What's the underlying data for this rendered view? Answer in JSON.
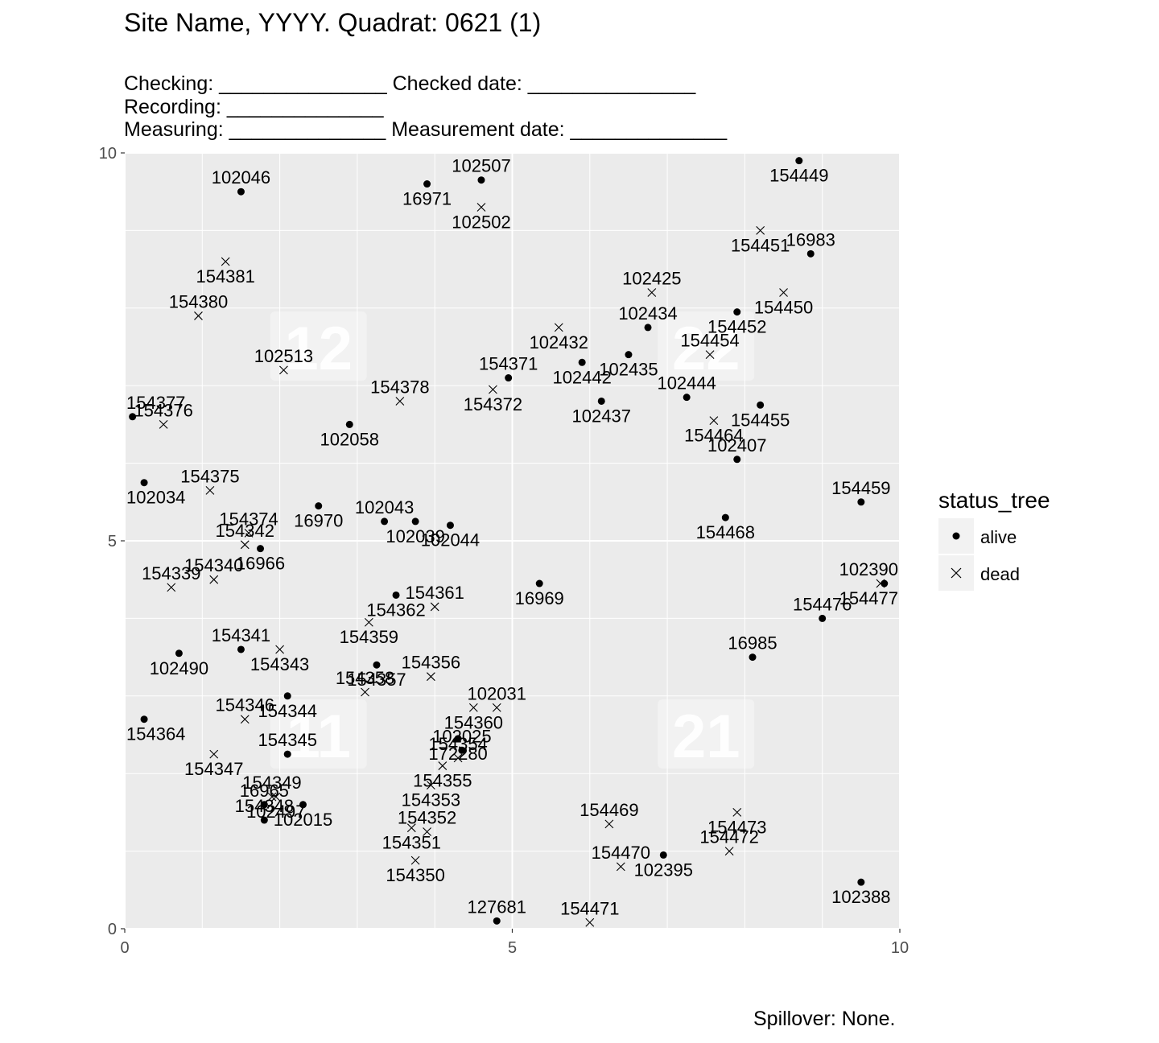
{
  "title": "Site Name, YYYY. Quadrat: 0621 (1)",
  "lines": {
    "checking": "Checking: _______________ Checked date: _______________",
    "recording": "Recording: ______________",
    "measuring": "Measuring: ______________ Measurement date: ______________"
  },
  "footer": "Spillover: None.",
  "legend": {
    "title": "status_tree",
    "items": [
      {
        "label": "alive",
        "shape": "filled-circle"
      },
      {
        "label": "dead",
        "shape": "cross"
      }
    ]
  },
  "chart_data": {
    "type": "scatter",
    "title": "Site Name, YYYY. Quadrat: 0621 (1)",
    "xlabel": "",
    "ylabel": "",
    "xlim": [
      0,
      10
    ],
    "ylim": [
      0,
      10
    ],
    "x_ticks": [
      "0",
      "5",
      "10"
    ],
    "y_ticks": [
      "0",
      "5",
      "10"
    ],
    "grid": true,
    "legend_position": "right",
    "colors": {
      "panel": "#ebebeb",
      "grid": "#ffffff",
      "points": "#000000"
    },
    "subquadrat_labels": [
      {
        "text": "12",
        "x": 2.5,
        "y": 7.5
      },
      {
        "text": "22",
        "x": 7.5,
        "y": 7.5
      },
      {
        "text": "11",
        "x": 2.5,
        "y": 2.5
      },
      {
        "text": "21",
        "x": 7.5,
        "y": 2.5
      }
    ],
    "points": [
      {
        "tag": "102046",
        "status": "alive",
        "x": 1.5,
        "y": 9.5
      },
      {
        "tag": "16971",
        "status": "alive",
        "x": 3.9,
        "y": 9.6
      },
      {
        "tag": "102507",
        "status": "alive",
        "x": 4.6,
        "y": 9.65
      },
      {
        "tag": "102502",
        "status": "dead",
        "x": 4.6,
        "y": 9.3
      },
      {
        "tag": "154449",
        "status": "alive",
        "x": 8.7,
        "y": 9.9
      },
      {
        "tag": "154451",
        "status": "dead",
        "x": 8.2,
        "y": 9.0
      },
      {
        "tag": "16983",
        "status": "alive",
        "x": 8.85,
        "y": 8.7
      },
      {
        "tag": "154381",
        "status": "dead",
        "x": 1.3,
        "y": 8.6
      },
      {
        "tag": "102425",
        "status": "dead",
        "x": 6.8,
        "y": 8.2
      },
      {
        "tag": "154450",
        "status": "dead",
        "x": 8.5,
        "y": 8.2
      },
      {
        "tag": "154380",
        "status": "dead",
        "x": 0.95,
        "y": 7.9
      },
      {
        "tag": "102432",
        "status": "dead",
        "x": 5.6,
        "y": 7.75
      },
      {
        "tag": "102434",
        "status": "alive",
        "x": 6.75,
        "y": 7.75
      },
      {
        "tag": "154452",
        "status": "alive",
        "x": 7.9,
        "y": 7.95
      },
      {
        "tag": "154454",
        "status": "dead",
        "x": 7.55,
        "y": 7.4
      },
      {
        "tag": "102435",
        "status": "alive",
        "x": 6.5,
        "y": 7.4
      },
      {
        "tag": "102513",
        "status": "dead",
        "x": 2.05,
        "y": 7.2
      },
      {
        "tag": "102442",
        "status": "alive",
        "x": 5.9,
        "y": 7.3
      },
      {
        "tag": "154371",
        "status": "alive",
        "x": 4.95,
        "y": 7.1
      },
      {
        "tag": "154372",
        "status": "dead",
        "x": 4.75,
        "y": 6.95
      },
      {
        "tag": "102444",
        "status": "alive",
        "x": 7.25,
        "y": 6.85
      },
      {
        "tag": "154455",
        "status": "alive",
        "x": 8.2,
        "y": 6.75
      },
      {
        "tag": "154378",
        "status": "dead",
        "x": 3.55,
        "y": 6.8
      },
      {
        "tag": "102437",
        "status": "alive",
        "x": 6.15,
        "y": 6.8
      },
      {
        "tag": "154377",
        "status": "alive",
        "x": 0.1,
        "y": 6.6
      },
      {
        "tag": "102058",
        "status": "alive",
        "x": 2.9,
        "y": 6.5
      },
      {
        "tag": "154376",
        "status": "dead",
        "x": 0.5,
        "y": 6.5
      },
      {
        "tag": "154464",
        "status": "dead",
        "x": 7.6,
        "y": 6.55
      },
      {
        "tag": "102407",
        "status": "alive",
        "x": 7.9,
        "y": 6.05
      },
      {
        "tag": "102034",
        "status": "alive",
        "x": 0.25,
        "y": 5.75
      },
      {
        "tag": "154375",
        "status": "dead",
        "x": 1.1,
        "y": 5.65
      },
      {
        "tag": "16970",
        "status": "alive",
        "x": 2.5,
        "y": 5.45
      },
      {
        "tag": "154459",
        "status": "alive",
        "x": 9.5,
        "y": 5.5
      },
      {
        "tag": "102039",
        "status": "alive",
        "x": 3.75,
        "y": 5.25
      },
      {
        "tag": "102043",
        "status": "alive",
        "x": 3.35,
        "y": 5.25
      },
      {
        "tag": "102044",
        "status": "alive",
        "x": 4.2,
        "y": 5.2
      },
      {
        "tag": "154374",
        "status": "dead",
        "x": 1.6,
        "y": 5.1
      },
      {
        "tag": "154468",
        "status": "alive",
        "x": 7.75,
        "y": 5.3
      },
      {
        "tag": "154342",
        "status": "dead",
        "x": 1.55,
        "y": 4.95
      },
      {
        "tag": "16966",
        "status": "alive",
        "x": 1.75,
        "y": 4.9
      },
      {
        "tag": "102390",
        "status": "alive",
        "x": 9.8,
        "y": 4.45
      },
      {
        "tag": "154477",
        "status": "dead",
        "x": 9.75,
        "y": 4.45
      },
      {
        "tag": "154340",
        "status": "dead",
        "x": 1.15,
        "y": 4.5
      },
      {
        "tag": "16969",
        "status": "alive",
        "x": 5.35,
        "y": 4.45
      },
      {
        "tag": "154339",
        "status": "dead",
        "x": 0.6,
        "y": 4.4
      },
      {
        "tag": "154362",
        "status": "alive",
        "x": 3.5,
        "y": 4.3
      },
      {
        "tag": "154361",
        "status": "dead",
        "x": 4.0,
        "y": 4.15
      },
      {
        "tag": "154359",
        "status": "dead",
        "x": 3.15,
        "y": 3.95
      },
      {
        "tag": "154476",
        "status": "alive",
        "x": 9.0,
        "y": 4.0
      },
      {
        "tag": "154343",
        "status": "dead",
        "x": 2.0,
        "y": 3.6
      },
      {
        "tag": "154341",
        "status": "alive",
        "x": 1.5,
        "y": 3.6
      },
      {
        "tag": "102490",
        "status": "alive",
        "x": 0.7,
        "y": 3.55
      },
      {
        "tag": "16985",
        "status": "alive",
        "x": 8.1,
        "y": 3.5
      },
      {
        "tag": "154357",
        "status": "alive",
        "x": 3.25,
        "y": 3.4
      },
      {
        "tag": "154356",
        "status": "dead",
        "x": 3.95,
        "y": 3.25
      },
      {
        "tag": "154344",
        "status": "alive",
        "x": 2.1,
        "y": 3.0
      },
      {
        "tag": "154358",
        "status": "dead",
        "x": 3.1,
        "y": 3.05
      },
      {
        "tag": "154360",
        "status": "dead",
        "x": 4.5,
        "y": 2.85
      },
      {
        "tag": "102031",
        "status": "dead",
        "x": 4.8,
        "y": 2.85
      },
      {
        "tag": "154364",
        "status": "alive",
        "x": 0.25,
        "y": 2.7
      },
      {
        "tag": "154346",
        "status": "dead",
        "x": 1.55,
        "y": 2.7
      },
      {
        "tag": "172280",
        "status": "alive",
        "x": 4.3,
        "y": 2.45
      },
      {
        "tag": "154345",
        "status": "alive",
        "x": 2.1,
        "y": 2.25
      },
      {
        "tag": "154347",
        "status": "dead",
        "x": 1.15,
        "y": 2.25
      },
      {
        "tag": "102025",
        "status": "alive",
        "x": 4.35,
        "y": 2.3
      },
      {
        "tag": "154355",
        "status": "dead",
        "x": 4.1,
        "y": 2.1
      },
      {
        "tag": "154354",
        "status": "dead",
        "x": 4.3,
        "y": 2.2
      },
      {
        "tag": "154353",
        "status": "dead",
        "x": 3.95,
        "y": 1.85
      },
      {
        "tag": "154349",
        "status": "dead",
        "x": 1.9,
        "y": 1.7
      },
      {
        "tag": "102497",
        "status": "dead",
        "x": 1.95,
        "y": 1.7
      },
      {
        "tag": "16965",
        "status": "alive",
        "x": 1.8,
        "y": 1.6
      },
      {
        "tag": "102015",
        "status": "alive",
        "x": 2.3,
        "y": 1.6
      },
      {
        "tag": "154348",
        "status": "alive",
        "x": 1.8,
        "y": 1.4
      },
      {
        "tag": "154473",
        "status": "dead",
        "x": 7.9,
        "y": 1.5
      },
      {
        "tag": "154469",
        "status": "dead",
        "x": 6.25,
        "y": 1.35
      },
      {
        "tag": "154351",
        "status": "dead",
        "x": 3.7,
        "y": 1.3
      },
      {
        "tag": "154352",
        "status": "dead",
        "x": 3.9,
        "y": 1.25
      },
      {
        "tag": "102395",
        "status": "alive",
        "x": 6.95,
        "y": 0.95
      },
      {
        "tag": "154472",
        "status": "dead",
        "x": 7.8,
        "y": 1.0
      },
      {
        "tag": "154350",
        "status": "dead",
        "x": 3.75,
        "y": 0.88
      },
      {
        "tag": "154470",
        "status": "dead",
        "x": 6.4,
        "y": 0.8
      },
      {
        "tag": "102388",
        "status": "alive",
        "x": 9.5,
        "y": 0.6
      },
      {
        "tag": "127681",
        "status": "alive",
        "x": 4.8,
        "y": 0.1
      },
      {
        "tag": "154471",
        "status": "dead",
        "x": 6.0,
        "y": 0.08
      }
    ]
  }
}
